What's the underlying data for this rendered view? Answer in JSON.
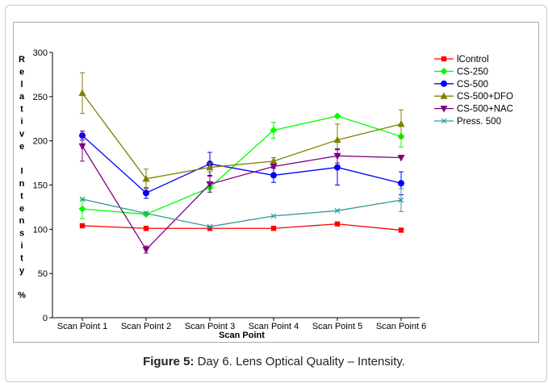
{
  "figure": {
    "caption_label": "Figure 5:",
    "caption_text": "Day 6. Lens Optical Quality – Intensity."
  },
  "chart_data": {
    "type": "line",
    "title": "",
    "xlabel": "Scan Point",
    "ylabel": "Relative Intensity %",
    "ylabel_chars": [
      "R",
      "e",
      "l",
      "a",
      "t",
      "i",
      "v",
      "e",
      "",
      "I",
      "n",
      "t",
      "e",
      "n",
      "s",
      "i",
      "t",
      "y",
      "",
      "%"
    ],
    "ylim": [
      0,
      300
    ],
    "yticks": [
      0,
      50,
      100,
      150,
      200,
      250,
      300
    ],
    "grid": false,
    "legend_position": "right",
    "categories": [
      "Scan Point 1",
      "Scan Point 2",
      "Scan Point 3",
      "Scan Point 4",
      "Scan Point 5",
      "Scan Point 6"
    ],
    "series": [
      {
        "name": "lControl",
        "color": "#ff0000",
        "marker": "square",
        "values": [
          104,
          101,
          101,
          101,
          106,
          99
        ],
        "errors": [
          0,
          0,
          0,
          0,
          0,
          0
        ]
      },
      {
        "name": "CS-250",
        "color": "#00ff00",
        "marker": "diamond",
        "values": [
          123,
          117,
          147,
          212,
          228,
          205
        ],
        "errors": [
          11,
          0,
          5,
          9,
          0,
          12
        ]
      },
      {
        "name": "CS-500",
        "color": "#0000ff",
        "marker": "circle",
        "values": [
          206,
          141,
          174,
          161,
          170,
          152
        ],
        "errors": [
          5,
          6,
          13,
          8,
          20,
          13
        ]
      },
      {
        "name": "CS-500+DFO",
        "color": "#808000",
        "marker": "triangle-up",
        "values": [
          254,
          157,
          170,
          177,
          201,
          219
        ],
        "errors": [
          23,
          11,
          5,
          4,
          18,
          16
        ]
      },
      {
        "name": "CS-500+NAC",
        "color": "#800080",
        "marker": "triangle-down",
        "values": [
          194,
          77,
          151,
          171,
          183,
          181
        ],
        "errors": [
          17,
          4,
          9,
          0,
          8,
          0
        ]
      },
      {
        "name": "Press. 500",
        "color": "#339999",
        "marker": "x",
        "values": [
          134,
          118,
          103,
          115,
          121,
          133
        ],
        "errors": [
          0,
          0,
          0,
          0,
          0,
          13
        ]
      }
    ]
  }
}
